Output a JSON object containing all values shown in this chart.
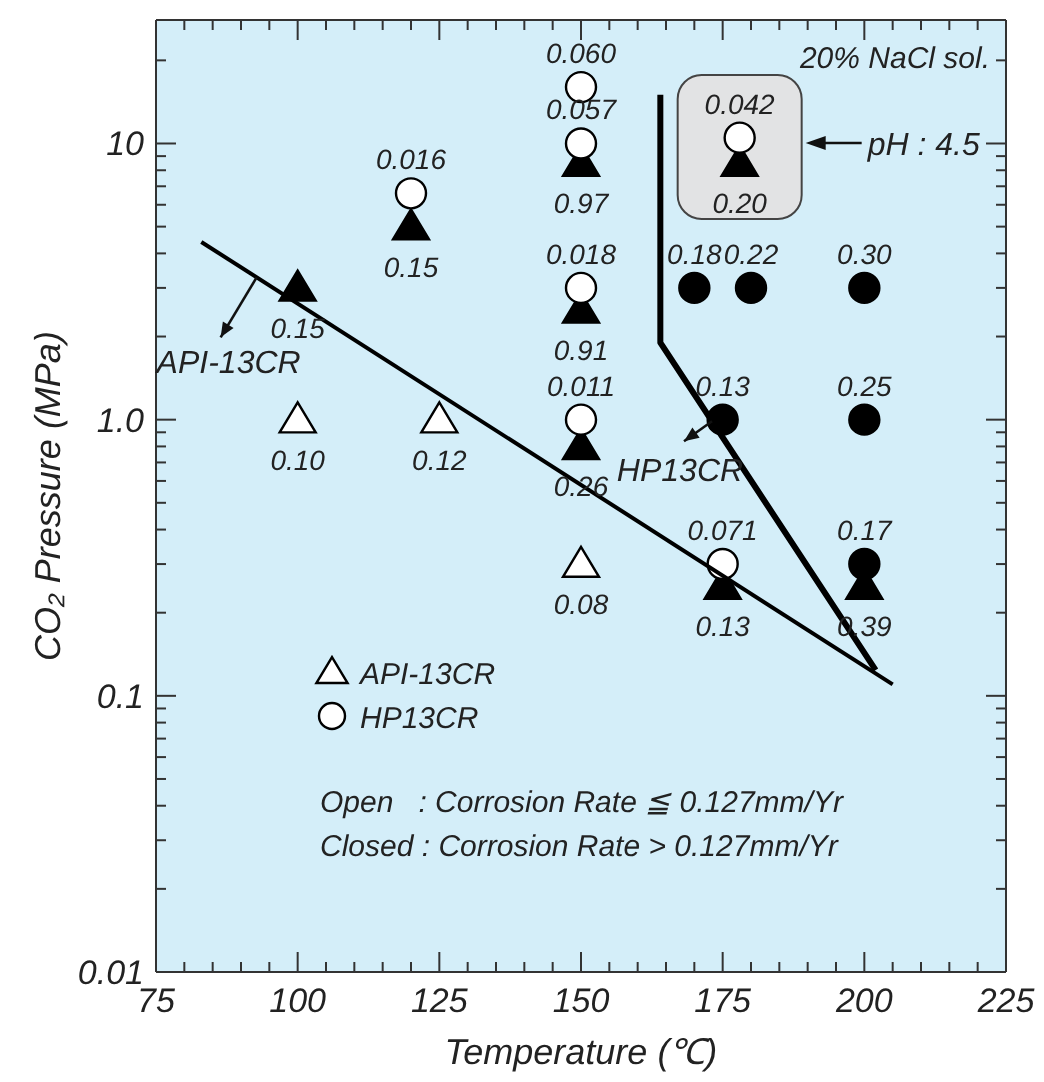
{
  "chart_data": {
    "type": "scatter",
    "xlabel": "Temperature (℃)",
    "ylabel": "CO₂ Pressure (MPa)",
    "xlim": [
      75,
      225
    ],
    "xticks": [
      75,
      {
        "value": 80,
        "label": null
      },
      {
        "value": 85,
        "label": null
      },
      {
        "value": 90,
        "label": null
      },
      {
        "value": 95,
        "label": null
      },
      100,
      {
        "value": 105,
        "label": null
      },
      {
        "value": 110,
        "label": null
      },
      {
        "value": 115,
        "label": null
      },
      {
        "value": 120,
        "label": null
      },
      125,
      {
        "value": 130,
        "label": null
      },
      {
        "value": 135,
        "label": null
      },
      {
        "value": 140,
        "label": null
      },
      {
        "value": 145,
        "label": null
      },
      150,
      {
        "value": 155,
        "label": null
      },
      {
        "value": 160,
        "label": null
      },
      {
        "value": 165,
        "label": null
      },
      {
        "value": 170,
        "label": null
      },
      175,
      {
        "value": 180,
        "label": null
      },
      {
        "value": 185,
        "label": null
      },
      {
        "value": 190,
        "label": null
      },
      {
        "value": 195,
        "label": null
      },
      200,
      {
        "value": 205,
        "label": null
      },
      {
        "value": 210,
        "label": null
      },
      {
        "value": 215,
        "label": null
      },
      {
        "value": 220,
        "label": null
      },
      225
    ],
    "ylim": [
      0.01,
      28
    ],
    "log": true,
    "yticks": [
      0.01,
      {
        "value": 0.02,
        "label": null
      },
      {
        "value": 0.03,
        "label": null
      },
      {
        "value": 0.04,
        "label": null
      },
      {
        "value": 0.05,
        "label": null
      },
      {
        "value": 0.06,
        "label": null
      },
      {
        "value": 0.07,
        "label": null
      },
      {
        "value": 0.08,
        "label": null
      },
      {
        "value": 0.09,
        "label": null
      },
      0.1,
      {
        "value": 0.2,
        "label": null
      },
      {
        "value": 0.3,
        "label": null
      },
      {
        "value": 0.4,
        "label": null
      },
      {
        "value": 0.5,
        "label": null
      },
      {
        "value": 0.6,
        "label": null
      },
      {
        "value": 0.7,
        "label": null
      },
      {
        "value": 0.8,
        "label": null
      },
      {
        "value": 0.9,
        "label": null
      },
      {
        "value": 1,
        "label": "1.0"
      },
      {
        "value": 2,
        "label": null
      },
      {
        "value": 3,
        "label": null
      },
      {
        "value": 4,
        "label": null
      },
      {
        "value": 5,
        "label": null
      },
      {
        "value": 6,
        "label": null
      },
      {
        "value": 7,
        "label": null
      },
      {
        "value": 8,
        "label": null
      },
      {
        "value": 9,
        "label": null
      },
      10,
      {
        "value": 20,
        "label": null
      }
    ],
    "legend": "bottom left",
    "series": [
      {
        "name": "API-13CR",
        "marker": "triangle",
        "color": "#ffffff",
        "x": [
          100,
          125,
          150
        ],
        "values": [
          1.0,
          1.0,
          0.3
        ]
      },
      {
        "marker": "triangle",
        "color": "#000000",
        "x": [
          100,
          120,
          150,
          150,
          150,
          175,
          200,
          178
        ],
        "values": [
          3,
          5,
          8.5,
          2.5,
          0.8,
          0.25,
          0.25,
          8.5
        ]
      },
      {
        "name": "HP13CR",
        "marker": "circle",
        "color": "#ffffff",
        "x": [
          120,
          150,
          150,
          150,
          150,
          175,
          178
        ],
        "values": [
          6.6,
          16,
          10,
          3,
          1.0,
          0.3,
          10.5
        ]
      },
      {
        "marker": "circle",
        "color": "#000000",
        "x": [
          170,
          180,
          200,
          175,
          200,
          200
        ],
        "values": [
          3,
          3,
          3,
          1,
          1,
          0.3
        ]
      },
      {
        "type": "line",
        "color": "#000000",
        "x": [
          83,
          205
        ],
        "values": [
          4.4,
          0.11
        ]
      },
      {
        "type": "line",
        "color": "#000000",
        "x": [
          164,
          164,
          202
        ],
        "values": [
          15,
          1.9,
          0.124
        ]
      }
    ],
    "annotations": [
      "20% NaCl sol.",
      "API-13CR",
      "HP13CR",
      "pH : 4.5",
      "Open   : Corrosion Rate ≦ 0.127mm/Yr",
      "Closed : Corrosion Rate > 0.127mm/Yr",
      {
        "text": "0.10",
        "x": 100,
        "y": 1.0
      },
      {
        "text": "0.12",
        "x": 125,
        "y": 1.0
      },
      {
        "text": "0.08",
        "x": 150,
        "y": 0.3
      },
      {
        "text": "0.15",
        "x": 100,
        "y": 3
      },
      {
        "text": "0.15",
        "x": 120,
        "y": 5
      },
      {
        "text": "0.97",
        "x": 150,
        "y": 8.5
      },
      {
        "text": "0.91",
        "x": 150,
        "y": 2.5
      },
      {
        "text": "0.26",
        "x": 150,
        "y": 0.8
      },
      {
        "text": "0.13",
        "x": 175,
        "y": 0.25
      },
      {
        "text": "0.39",
        "x": 200,
        "y": 0.25
      },
      {
        "text": "0.20",
        "x": 178,
        "y": 8.5
      },
      {
        "text": "0.016",
        "x": 120,
        "y": 6.6
      },
      {
        "text": "0.060",
        "x": 150,
        "y": 16
      },
      {
        "text": "0.057",
        "x": 150,
        "y": 10
      },
      {
        "text": "0.018",
        "x": 150,
        "y": 3
      },
      {
        "text": "0.011",
        "x": 150,
        "y": 1.0
      },
      {
        "text": "0.071",
        "x": 175,
        "y": 0.3
      },
      {
        "text": "0.042",
        "x": 178,
        "y": 10.5
      },
      {
        "text": "0.18",
        "x": 170,
        "y": 3
      },
      {
        "text": "0.22",
        "x": 180,
        "y": 3
      },
      {
        "text": "0.30",
        "x": 200,
        "y": 3
      },
      {
        "text": "0.13",
        "x": 175,
        "y": 1
      },
      {
        "text": "0.25",
        "x": 200,
        "y": 1
      },
      {
        "text": "0.17",
        "x": 200,
        "y": 0.3
      }
    ]
  }
}
